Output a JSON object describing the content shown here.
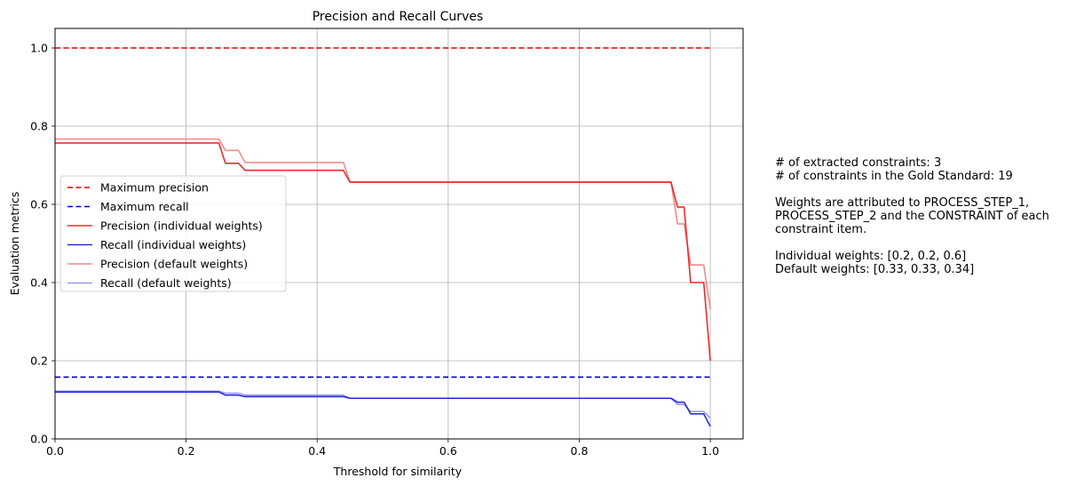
{
  "chart_data": {
    "type": "line",
    "title": "Precision and Recall Curves",
    "xlabel": "Threshold for similarity",
    "ylabel": "Evaluation metrics",
    "xlim": [
      0.0,
      1.05
    ],
    "ylim": [
      0.0,
      1.05
    ],
    "xticks": [
      "0.0",
      "0.2",
      "0.4",
      "0.6",
      "0.8",
      "1.0"
    ],
    "yticks": [
      "0.0",
      "0.2",
      "0.4",
      "0.6",
      "0.8",
      "1.0"
    ],
    "grid": true,
    "legend_position": "center-left",
    "series": [
      {
        "name": "Maximum precision",
        "color": "#e00000",
        "dash": true,
        "opacity": 1.0,
        "x": [
          0.0,
          1.0
        ],
        "y": [
          1.0,
          1.0
        ]
      },
      {
        "name": "Maximum recall",
        "color": "#0000c0",
        "dash": true,
        "opacity": 1.0,
        "x": [
          0.0,
          1.0
        ],
        "y": [
          0.158,
          0.158
        ]
      },
      {
        "name": "Precision (individual weights)",
        "color": "#f02020",
        "dash": false,
        "opacity": 0.95,
        "x": [
          0.0,
          0.25,
          0.26,
          0.28,
          0.29,
          0.44,
          0.45,
          0.94,
          0.95,
          0.96,
          0.97,
          0.98,
          0.99,
          1.0
        ],
        "y": [
          0.757,
          0.757,
          0.705,
          0.705,
          0.687,
          0.687,
          0.657,
          0.657,
          0.593,
          0.593,
          0.4,
          0.4,
          0.4,
          0.2
        ]
      },
      {
        "name": "Recall (individual weights)",
        "color": "#2020e0",
        "dash": false,
        "opacity": 0.95,
        "x": [
          0.0,
          0.25,
          0.26,
          0.28,
          0.29,
          0.44,
          0.45,
          0.94,
          0.95,
          0.96,
          0.97,
          0.98,
          0.99,
          1.0
        ],
        "y": [
          0.12,
          0.12,
          0.112,
          0.112,
          0.108,
          0.108,
          0.104,
          0.104,
          0.094,
          0.094,
          0.064,
          0.064,
          0.064,
          0.032
        ]
      },
      {
        "name": "Precision (default weights)",
        "color": "#f08080",
        "dash": false,
        "opacity": 0.9,
        "x": [
          0.0,
          0.25,
          0.26,
          0.28,
          0.29,
          0.44,
          0.45,
          0.94,
          0.95,
          0.96,
          0.97,
          0.98,
          0.99,
          1.0
        ],
        "y": [
          0.767,
          0.767,
          0.738,
          0.738,
          0.707,
          0.707,
          0.657,
          0.657,
          0.55,
          0.55,
          0.445,
          0.445,
          0.445,
          0.333
        ]
      },
      {
        "name": "Recall (default weights)",
        "color": "#9090ee",
        "dash": false,
        "opacity": 0.9,
        "x": [
          0.0,
          0.25,
          0.26,
          0.28,
          0.29,
          0.44,
          0.45,
          0.94,
          0.95,
          0.96,
          0.97,
          0.98,
          0.99,
          1.0
        ],
        "y": [
          0.122,
          0.122,
          0.117,
          0.117,
          0.112,
          0.112,
          0.104,
          0.104,
          0.088,
          0.088,
          0.07,
          0.07,
          0.07,
          0.053
        ]
      }
    ]
  },
  "annotation": {
    "line1": "# of extracted constraints: 3",
    "line2": "# of constraints in the Gold Standard: 19",
    "line3": "Weights are attributed to PROCESS_STEP_1,",
    "line4": "PROCESS_STEP_2 and the CONSTRAINT of each",
    "line5": "constraint item.",
    "line6": "Individual weights: [0.2, 0.2, 0.6]",
    "line7": "Default weights: [0.33, 0.33, 0.34]"
  }
}
